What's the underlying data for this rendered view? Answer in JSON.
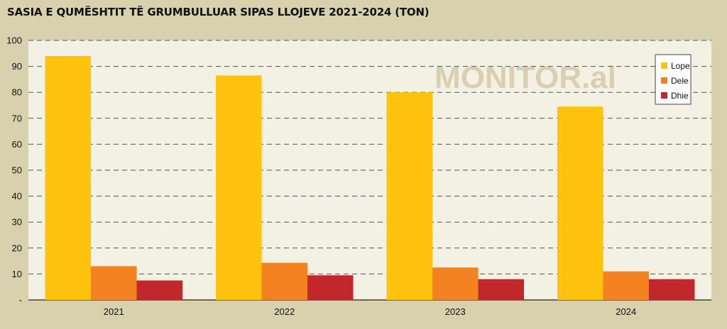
{
  "title": "SASIA E QUMËSHTIT TË GRUMBULLUAR SIPAS LLOJEVE 2021-2024 (TON)",
  "watermark": "MONITOR.al",
  "colors": {
    "page_background": "#d9d0ad",
    "plot_background": "#f3f0e4",
    "gridline": "#555555",
    "Lope": "#ffc20e",
    "Dele": "#f58220",
    "Dhie": "#c1272d"
  },
  "chart_data": {
    "type": "bar",
    "title": "SASIA E QUMËSHTIT TË GRUMBULLUAR SIPAS LLOJEVE 2021-2024 (TON)",
    "xlabel": "",
    "ylabel": "",
    "categories": [
      "2021",
      "2022",
      "2023",
      "2024"
    ],
    "series": [
      {
        "name": "Lope",
        "values": [
          94,
          86.5,
          80,
          74.5
        ]
      },
      {
        "name": "Dele",
        "values": [
          13,
          14.3,
          12.5,
          11
        ]
      },
      {
        "name": "Dhie",
        "values": [
          7.5,
          9.5,
          8,
          8
        ]
      }
    ],
    "ylim": [
      0,
      100
    ],
    "yticks": [
      0,
      10,
      20,
      30,
      40,
      50,
      60,
      70,
      80,
      90,
      100
    ],
    "ytick_labels": [
      "-",
      "10",
      "20",
      "30",
      "40",
      "50",
      "60",
      "70",
      "80",
      "90",
      "100"
    ],
    "grid": true,
    "grid_style": "dashed",
    "legend_position": "top-right"
  }
}
